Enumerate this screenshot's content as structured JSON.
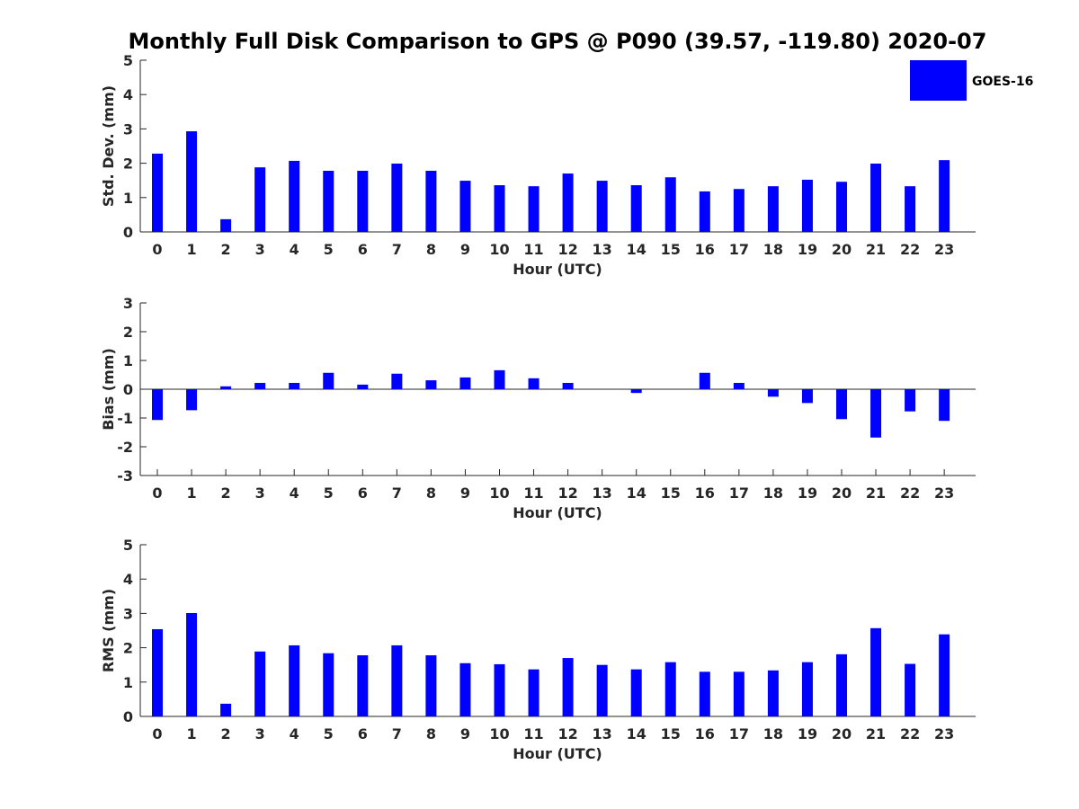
{
  "chart_data": {
    "title": "Monthly Full Disk Comparison to GPS @ P090 (39.57, -119.80) 2020-07",
    "legend": {
      "label": "GOES-16",
      "color": "#0000ff",
      "placement": "top-right"
    },
    "panels": [
      {
        "type": "bar",
        "xlabel": "Hour (UTC)",
        "ylabel": "Std. Dev. (mm)",
        "ylim": [
          0,
          5
        ],
        "yticks": [
          0,
          1,
          2,
          3,
          4,
          5
        ],
        "categories": [
          "0",
          "1",
          "2",
          "3",
          "4",
          "5",
          "6",
          "7",
          "8",
          "9",
          "10",
          "11",
          "12",
          "13",
          "14",
          "15",
          "16",
          "17",
          "18",
          "19",
          "20",
          "21",
          "22",
          "23"
        ],
        "series": [
          {
            "name": "GOES-16",
            "values": [
              2.28,
              2.93,
              0.37,
              1.88,
              2.07,
              1.78,
              1.78,
              1.99,
              1.78,
              1.49,
              1.36,
              1.33,
              1.7,
              1.49,
              1.36,
              1.59,
              1.18,
              1.25,
              1.33,
              1.52,
              1.46,
              1.99,
              1.33,
              2.09
            ]
          }
        ]
      },
      {
        "type": "bar",
        "xlabel": "Hour (UTC)",
        "ylabel": "Bias (mm)",
        "ylim": [
          -3,
          3
        ],
        "yticks": [
          -3,
          -2,
          -1,
          0,
          1,
          2,
          3
        ],
        "categories": [
          "0",
          "1",
          "2",
          "3",
          "4",
          "5",
          "6",
          "7",
          "8",
          "9",
          "10",
          "11",
          "12",
          "13",
          "14",
          "15",
          "16",
          "17",
          "18",
          "19",
          "20",
          "21",
          "22",
          "23"
        ],
        "series": [
          {
            "name": "GOES-16",
            "values": [
              -1.07,
              -0.73,
              0.1,
              0.22,
              0.22,
              0.57,
              0.16,
              0.54,
              0.31,
              0.41,
              0.66,
              0.38,
              0.22,
              0.0,
              -0.13,
              0.0,
              0.57,
              0.22,
              -0.26,
              -0.48,
              -1.04,
              -1.68,
              -0.77,
              -1.1
            ]
          }
        ]
      },
      {
        "type": "bar",
        "xlabel": "Hour (UTC)",
        "ylabel": "RMS (mm)",
        "ylim": [
          0,
          5
        ],
        "yticks": [
          0,
          1,
          2,
          3,
          4,
          5
        ],
        "categories": [
          "0",
          "1",
          "2",
          "3",
          "4",
          "5",
          "6",
          "7",
          "8",
          "9",
          "10",
          "11",
          "12",
          "13",
          "14",
          "15",
          "16",
          "17",
          "18",
          "19",
          "20",
          "21",
          "22",
          "23"
        ],
        "series": [
          {
            "name": "GOES-16",
            "values": [
              2.54,
              3.01,
              0.37,
              1.89,
              2.07,
              1.84,
              1.78,
              2.07,
              1.78,
              1.55,
              1.52,
              1.37,
              1.7,
              1.5,
              1.37,
              1.58,
              1.3,
              1.3,
              1.34,
              1.58,
              1.81,
              2.57,
              1.53,
              2.39
            ]
          }
        ]
      }
    ]
  }
}
